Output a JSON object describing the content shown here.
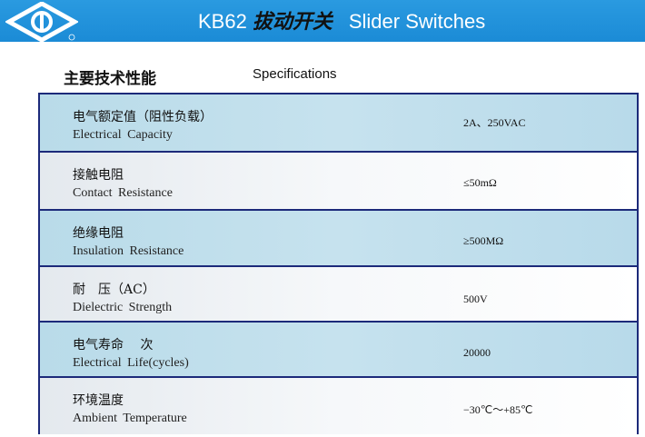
{
  "header": {
    "model": "KB62",
    "title_cn": "拔动开关",
    "title_en": "Slider Switches",
    "brand_color": "#1e90d8"
  },
  "section": {
    "title_cn": "主要技术性能",
    "title_en": "Specifications"
  },
  "specs": [
    {
      "cn": "电气额定值（阻性负载）",
      "en": "Electrical  Capacity",
      "value": "2A、250VAC"
    },
    {
      "cn": "接触电阻",
      "en": "Contact  Resistance",
      "value": "≤50mΩ"
    },
    {
      "cn": "绝缘电阻",
      "en": "Insulation  Resistance",
      "value": "≥500MΩ"
    },
    {
      "cn": "耐　压（AC）",
      "en": "Dielectric   Strength",
      "value": "500V"
    },
    {
      "cn": "电气寿命　 次",
      "en": "Electrical  Life(cycles)",
      "value": "20000"
    },
    {
      "cn": "环境温度",
      "en": "Ambient  Temperature",
      "value": "−30℃～+85℃"
    }
  ]
}
